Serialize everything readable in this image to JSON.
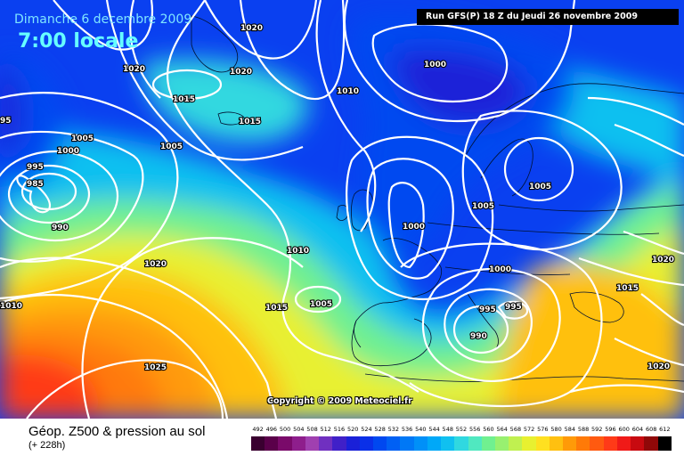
{
  "header": {
    "date": "Dimanche 6 decembre 2009",
    "time": "7:00 locale",
    "run": "Run GFS(P) 18 Z du Jeudi 26 novembre 2009"
  },
  "copyright": "Copyright © 2009 Meteociel.fr",
  "footer": {
    "title": "Géop. Z500 & pression au sol",
    "subtitle": "(+ 228h)"
  },
  "scale": {
    "labels": [
      "492",
      "496",
      "500",
      "504",
      "508",
      "512",
      "516",
      "520",
      "524",
      "528",
      "532",
      "536",
      "540",
      "544",
      "548",
      "552",
      "556",
      "560",
      "564",
      "568",
      "572",
      "576",
      "580",
      "584",
      "588",
      "592",
      "596",
      "600",
      "604",
      "608",
      "612"
    ],
    "colors": [
      "#3a0030",
      "#5a004a",
      "#7a0a6a",
      "#8e1e8c",
      "#a040b0",
      "#7030c0",
      "#4020c8",
      "#1a20d8",
      "#0a30e8",
      "#0048f0",
      "#0060f4",
      "#0078f6",
      "#0090f8",
      "#00a8f8",
      "#10c0f0",
      "#30d8e0",
      "#50e8c0",
      "#70f090",
      "#98f070",
      "#c0f050",
      "#e8f030",
      "#ffe020",
      "#ffc010",
      "#ff9a08",
      "#ff7a08",
      "#ff5a10",
      "#ff3a18",
      "#f01a18",
      "#c80a10",
      "#900808",
      "#000000"
    ]
  },
  "isobars": [
    {
      "value": "1020",
      "id": "1020-a"
    },
    {
      "value": "1020",
      "id": "1020-b"
    },
    {
      "value": "1020",
      "id": "1020-c"
    },
    {
      "value": "1000",
      "id": "1000-a"
    },
    {
      "value": "1010",
      "id": "1010-a"
    },
    {
      "value": "1015",
      "id": "1015-a"
    },
    {
      "value": "1015",
      "id": "1015-b"
    },
    {
      "value": "1005",
      "id": "1005-a"
    },
    {
      "value": "1005",
      "id": "1005-b"
    },
    {
      "value": "1000",
      "id": "1000-b"
    },
    {
      "value": "995",
      "id": "995-a"
    },
    {
      "value": "985",
      "id": "985-a"
    },
    {
      "value": "990",
      "id": "990-a"
    },
    {
      "value": "1005",
      "id": "1005-c"
    },
    {
      "value": "1005",
      "id": "1005-d"
    },
    {
      "value": "1000",
      "id": "1000-c"
    },
    {
      "value": "1020",
      "id": "1020-d"
    },
    {
      "value": "1010",
      "id": "1010-b"
    },
    {
      "value": "1015",
      "id": "1015-c"
    },
    {
      "value": "1005",
      "id": "1005-e"
    },
    {
      "value": "1000",
      "id": "1000-d"
    },
    {
      "value": "995",
      "id": "995-b"
    },
    {
      "value": "995",
      "id": "995-c"
    },
    {
      "value": "990",
      "id": "990-b"
    },
    {
      "value": "1020",
      "id": "1020-e"
    },
    {
      "value": "1015",
      "id": "1015-d"
    },
    {
      "value": "1025",
      "id": "1025-a"
    },
    {
      "value": "1020",
      "id": "1020-f"
    },
    {
      "value": "1010",
      "id": "1010-c"
    },
    {
      "value": "95",
      "id": "95-a"
    }
  ]
}
